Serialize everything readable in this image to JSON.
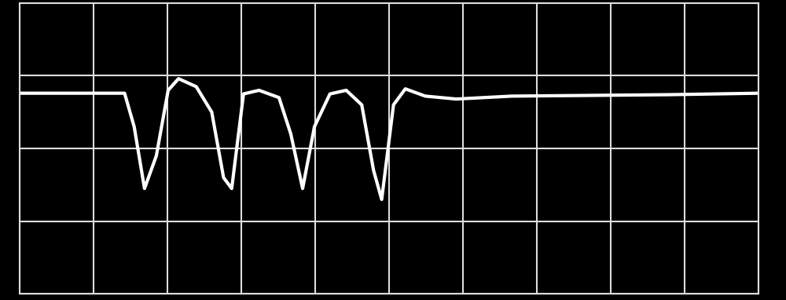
{
  "chart_data": {
    "type": "line",
    "x": [
      0.0,
      1.42,
      1.55,
      1.69,
      1.85,
      2.01,
      2.15,
      2.39,
      2.6,
      2.76,
      2.87,
      3.03,
      3.24,
      3.51,
      3.67,
      3.83,
      3.99,
      4.2,
      4.42,
      4.63,
      4.79,
      4.9,
      5.06,
      5.22,
      5.49,
      5.91,
      6.66,
      7.73,
      8.8,
      10.0
    ],
    "series": [
      {
        "color": "#ffffff",
        "values": [
          2.76,
          2.76,
          2.3,
          1.45,
          1.9,
          2.8,
          2.96,
          2.85,
          2.5,
          1.6,
          1.45,
          2.75,
          2.8,
          2.7,
          2.2,
          1.45,
          2.3,
          2.75,
          2.8,
          2.6,
          1.7,
          1.3,
          2.6,
          2.82,
          2.72,
          2.68,
          2.72,
          2.73,
          2.74,
          2.76
        ]
      }
    ],
    "xlim": [
      0,
      10
    ],
    "ylim": [
      0,
      4
    ],
    "xticks": [
      0,
      1,
      2,
      3,
      4,
      5,
      6,
      7,
      8,
      9,
      10
    ],
    "yticks": [
      0,
      1,
      2,
      3,
      4
    ],
    "grid": true,
    "tick_labels": false
  }
}
